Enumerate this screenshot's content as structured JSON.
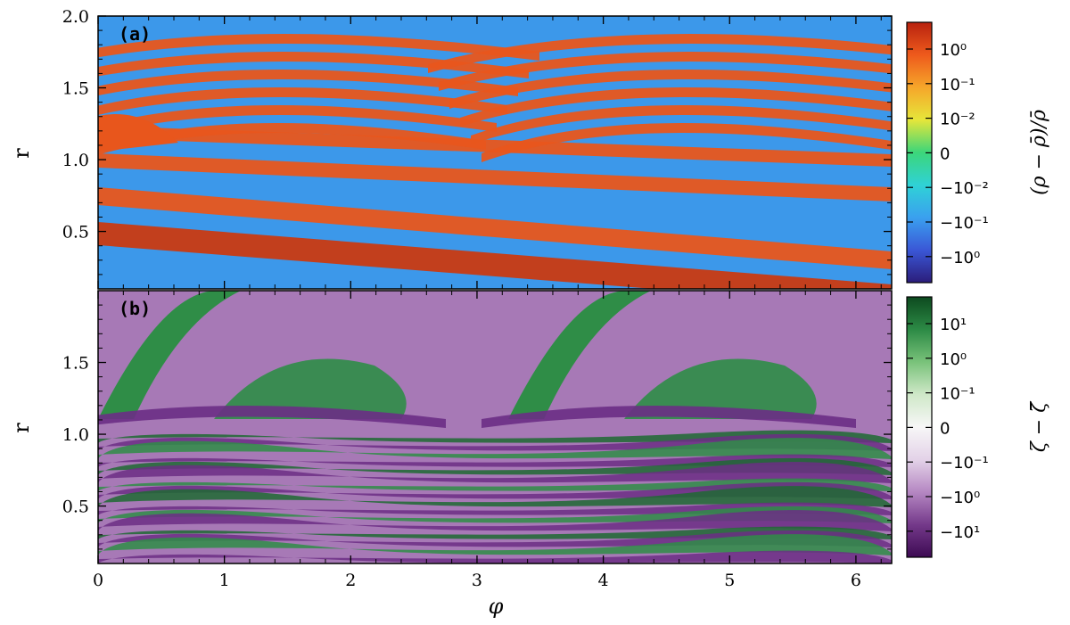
{
  "chart_data": [
    {
      "type": "heatmap",
      "panel_label": "(a)",
      "xlabel": "",
      "ylabel": "r",
      "xlim": [
        0,
        6.283
      ],
      "ylim": [
        0.1,
        2.0
      ],
      "x_ticks": [
        "0",
        "1",
        "2",
        "3",
        "4",
        "5",
        "6"
      ],
      "y_ticks": [
        "0.5",
        "1.0",
        "1.5",
        "2.0"
      ],
      "colorbar": {
        "title": "(ρ − ρ̄)/ρ̄",
        "tick_labels": [
          "10⁰",
          "10⁻¹",
          "10⁻²",
          "0",
          "−10⁻²",
          "−10⁻¹",
          "−10⁰"
        ],
        "colors": [
          "#2b1d7a",
          "#3a57d6",
          "#3aa0ef",
          "#2fd2d6",
          "#3cd67a",
          "#e6e63a",
          "#f6a62a",
          "#ee5a1c",
          "#b8220f"
        ]
      },
      "features": "positive density spiral bands (orange-red) on negative background (blue)"
    },
    {
      "type": "heatmap",
      "panel_label": "(b)",
      "xlabel": "φ",
      "ylabel": "r",
      "xlim": [
        0,
        6.283
      ],
      "ylim": [
        0.1,
        2.0
      ],
      "x_ticks": [
        "0",
        "1",
        "2",
        "3",
        "4",
        "5",
        "6"
      ],
      "y_ticks": [
        "0.5",
        "1.0",
        "1.5"
      ],
      "colorbar": {
        "title": "ζ − ζ̄",
        "tick_labels": [
          "10¹",
          "10⁰",
          "10⁻¹",
          "0",
          "−10⁻¹",
          "−10⁰",
          "−10¹"
        ],
        "colors": [
          "#3d0a53",
          "#74398a",
          "#b587c2",
          "#e3d2e8",
          "#f7f7f7",
          "#cfe8c8",
          "#79c27a",
          "#2c8a45",
          "#0d4a1f"
        ]
      },
      "features": "vorticity perturbation: green positive vortices/bands on purple negative background"
    }
  ]
}
